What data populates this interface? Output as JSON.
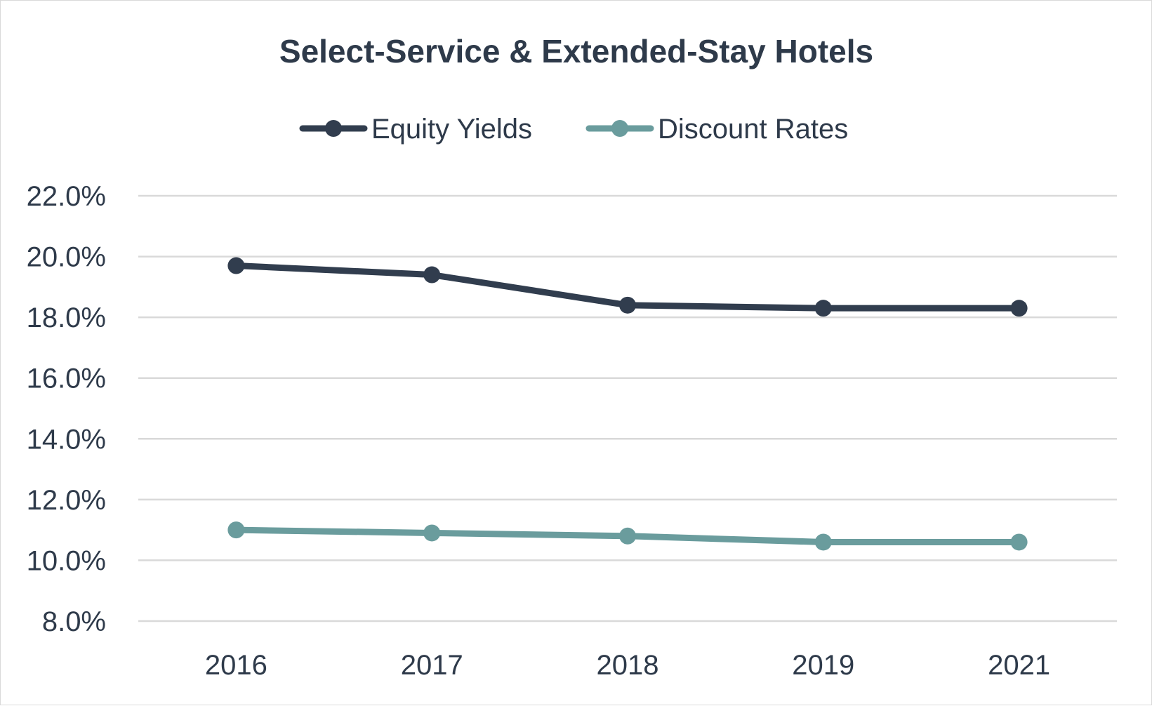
{
  "chart_data": {
    "type": "line",
    "title": "Select-Service & Extended-Stay Hotels",
    "xlabel": "",
    "ylabel": "",
    "categories": [
      "2016",
      "2017",
      "2018",
      "2019",
      "2021"
    ],
    "y_ticks": [
      "8.0%",
      "10.0%",
      "12.0%",
      "14.0%",
      "16.0%",
      "18.0%",
      "20.0%",
      "22.0%"
    ],
    "ylim": [
      8.0,
      22.0
    ],
    "y_unit": "%",
    "grid": true,
    "legend_position": "top",
    "series": [
      {
        "name": "Equity Yields",
        "color": "#313d4e",
        "values": [
          19.7,
          19.4,
          18.4,
          18.3,
          18.3
        ]
      },
      {
        "name": "Discount Rates",
        "color": "#6a9c9d",
        "values": [
          11.0,
          10.9,
          10.8,
          10.6,
          10.6
        ]
      }
    ]
  }
}
